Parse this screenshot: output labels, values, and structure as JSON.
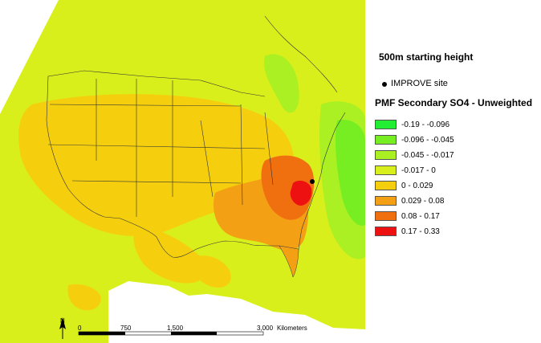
{
  "title": "500m starting height",
  "site_legend": {
    "label": "IMPROVE site"
  },
  "legend": {
    "heading": "PMF Secondary SO4 - Unweighted",
    "classes": [
      {
        "label": "-0.19 - -0.096",
        "color": "#22ee33"
      },
      {
        "label": "-0.096 - -0.045",
        "color": "#77ee22"
      },
      {
        "label": "-0.045 - -0.017",
        "color": "#aaf022"
      },
      {
        "label": "-0.017 - 0",
        "color": "#d9ef1c"
      },
      {
        "label": "0 - 0.029",
        "color": "#f5cf0e"
      },
      {
        "label": "0.029 - 0.08",
        "color": "#f4a015"
      },
      {
        "label": "0.08 - 0.17",
        "color": "#f07010"
      },
      {
        "label": "0.17 - 0.33",
        "color": "#ee1111"
      }
    ]
  },
  "scalebar": {
    "north": "N",
    "ticks": [
      "0",
      "750",
      "1,500",
      "3,000"
    ],
    "unit": "Kilometers"
  },
  "icons": {
    "north_arrow": "north-arrow-icon",
    "site_marker": "improve-site-icon"
  }
}
